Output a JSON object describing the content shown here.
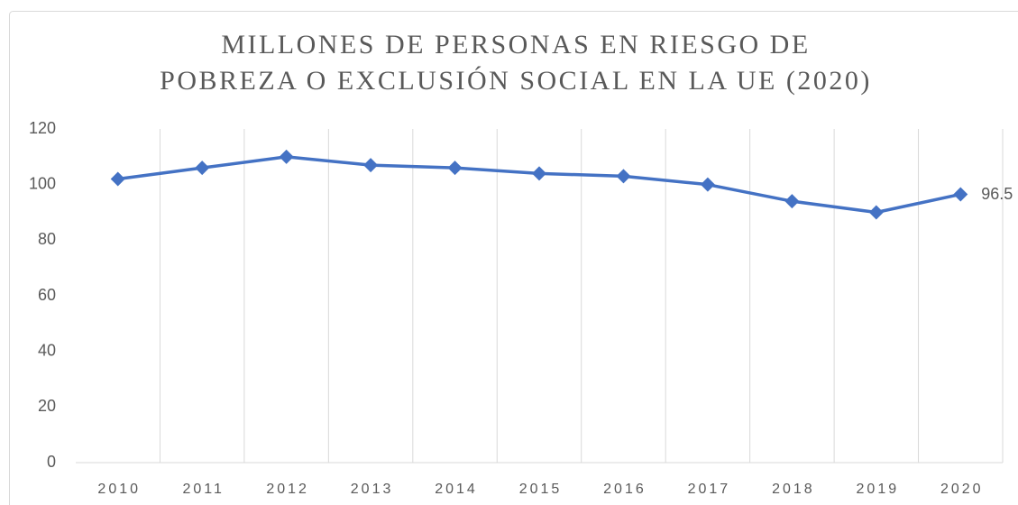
{
  "chart_data": {
    "type": "line",
    "title": [
      "MILLONES DE PERSONAS EN RIESGO DE",
      "POBREZA O EXCLUSIÓN SOCIAL EN LA UE (2020)"
    ],
    "categories": [
      "2010",
      "2011",
      "2012",
      "2013",
      "2014",
      "2015",
      "2016",
      "2017",
      "2018",
      "2019",
      "2020"
    ],
    "values": [
      102,
      106,
      110,
      107,
      106,
      104,
      103,
      100,
      94,
      90,
      96.5
    ],
    "value_labels": [
      null,
      null,
      null,
      null,
      null,
      null,
      null,
      null,
      null,
      null,
      "96.5"
    ],
    "color": "#4472c4",
    "ylim": [
      0,
      120
    ],
    "yticks": [
      0,
      20,
      40,
      60,
      80,
      100,
      120
    ]
  }
}
